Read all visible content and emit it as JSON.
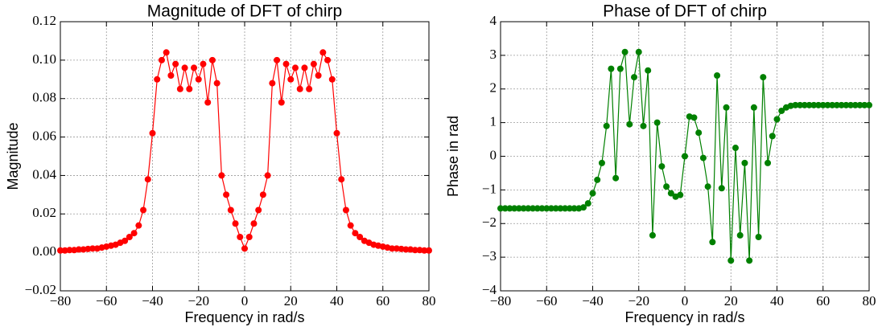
{
  "chart_data": [
    {
      "type": "line",
      "title": "Magnitude of DFT of chirp",
      "xlabel": "Frequency in rad/s",
      "ylabel": "Magnitude",
      "color": "#ff0000",
      "marker": "circle",
      "grid": true,
      "x": [
        -80,
        -78,
        -76,
        -74,
        -72,
        -70,
        -68,
        -66,
        -64,
        -62,
        -60,
        -58,
        -56,
        -54,
        -52,
        -50,
        -48,
        -46,
        -44,
        -42,
        -40,
        -38,
        -36,
        -34,
        -32,
        -30,
        -28,
        -26,
        -24,
        -22,
        -20,
        -18,
        -16,
        -14,
        -12,
        -10,
        -8,
        -6,
        -4,
        -2,
        0,
        2,
        4,
        6,
        8,
        10,
        12,
        14,
        16,
        18,
        20,
        22,
        24,
        26,
        28,
        30,
        32,
        34,
        36,
        38,
        40,
        42,
        44,
        46,
        48,
        50,
        52,
        54,
        56,
        58,
        60,
        62,
        64,
        66,
        68,
        70,
        72,
        74,
        76,
        78,
        80
      ],
      "values": [
        0.001,
        0.001,
        0.0012,
        0.0012,
        0.0015,
        0.0015,
        0.0018,
        0.002,
        0.002,
        0.0025,
        0.003,
        0.0035,
        0.004,
        0.005,
        0.006,
        0.008,
        0.01,
        0.014,
        0.022,
        0.038,
        0.062,
        0.09,
        0.1,
        0.104,
        0.092,
        0.098,
        0.085,
        0.096,
        0.085,
        0.096,
        0.09,
        0.098,
        0.078,
        0.1,
        0.088,
        0.04,
        0.03,
        0.022,
        0.015,
        0.008,
        0.002,
        0.008,
        0.015,
        0.022,
        0.03,
        0.04,
        0.088,
        0.1,
        0.078,
        0.098,
        0.09,
        0.096,
        0.085,
        0.096,
        0.085,
        0.098,
        0.092,
        0.104,
        0.1,
        0.09,
        0.062,
        0.038,
        0.022,
        0.014,
        0.01,
        0.008,
        0.006,
        0.005,
        0.004,
        0.0035,
        0.003,
        0.0025,
        0.002,
        0.002,
        0.0018,
        0.0015,
        0.0015,
        0.0012,
        0.0012,
        0.001,
        0.001
      ],
      "xlim": [
        -80,
        80
      ],
      "xticks": [
        {
          "value": -80,
          "label": "−80"
        },
        {
          "value": -60,
          "label": "−60"
        },
        {
          "value": -40,
          "label": "−40"
        },
        {
          "value": -20,
          "label": "−20"
        },
        0,
        20,
        40,
        60,
        80
      ],
      "ylim": [
        -0.02,
        0.12
      ],
      "yticks": [
        {
          "value": -0.02,
          "label": "−0.02"
        },
        {
          "value": 0,
          "label": "0.00"
        },
        {
          "value": 0.02,
          "label": "0.02"
        },
        {
          "value": 0.04,
          "label": "0.04"
        },
        {
          "value": 0.06,
          "label": "0.06"
        },
        {
          "value": 0.08,
          "label": "0.08"
        },
        {
          "value": 0.1,
          "label": "0.10"
        },
        {
          "value": 0.12,
          "label": "0.12"
        }
      ]
    },
    {
      "type": "line",
      "title": "Phase of DFT of chirp",
      "xlabel": "Frequency in rad/s",
      "ylabel": "Phase in rad",
      "color": "#008000",
      "marker": "circle",
      "grid": true,
      "x": [
        -80,
        -78,
        -76,
        -74,
        -72,
        -70,
        -68,
        -66,
        -64,
        -62,
        -60,
        -58,
        -56,
        -54,
        -52,
        -50,
        -48,
        -46,
        -44,
        -42,
        -40,
        -38,
        -36,
        -34,
        -32,
        -30,
        -28,
        -26,
        -24,
        -22,
        -20,
        -18,
        -16,
        -14,
        -12,
        -10,
        -8,
        -6,
        -4,
        -2,
        0,
        2,
        4,
        6,
        8,
        10,
        12,
        14,
        16,
        18,
        20,
        22,
        24,
        26,
        28,
        30,
        32,
        34,
        36,
        38,
        40,
        42,
        44,
        46,
        48,
        50,
        52,
        54,
        56,
        58,
        60,
        62,
        64,
        66,
        68,
        70,
        72,
        74,
        76,
        78,
        80
      ],
      "values": [
        -1.55,
        -1.55,
        -1.55,
        -1.55,
        -1.55,
        -1.55,
        -1.55,
        -1.55,
        -1.55,
        -1.55,
        -1.55,
        -1.55,
        -1.55,
        -1.55,
        -1.55,
        -1.55,
        -1.55,
        -1.55,
        -1.52,
        -1.4,
        -1.1,
        -0.7,
        -0.2,
        0.9,
        2.6,
        -0.65,
        2.6,
        3.1,
        0.95,
        2.35,
        3.1,
        0.9,
        2.55,
        -2.35,
        1.0,
        -0.3,
        -0.9,
        -1.1,
        -1.2,
        -1.15,
        0.0,
        1.18,
        1.15,
        0.7,
        -0.05,
        -0.9,
        -2.55,
        2.4,
        -0.95,
        1.45,
        -3.1,
        0.25,
        -2.35,
        -0.2,
        -3.1,
        1.45,
        -2.4,
        2.35,
        -0.2,
        0.6,
        1.1,
        1.35,
        1.45,
        1.5,
        1.52,
        1.52,
        1.52,
        1.52,
        1.52,
        1.52,
        1.52,
        1.52,
        1.52,
        1.52,
        1.52,
        1.52,
        1.52,
        1.52,
        1.52,
        1.52,
        1.52
      ],
      "xlim": [
        -80,
        80
      ],
      "xticks": [
        {
          "value": -80,
          "label": "−80"
        },
        {
          "value": -60,
          "label": "−60"
        },
        {
          "value": -40,
          "label": "−40"
        },
        {
          "value": -20,
          "label": "−20"
        },
        0,
        20,
        40,
        60,
        80
      ],
      "ylim": [
        -4,
        4
      ],
      "yticks": [
        {
          "value": -4,
          "label": "−4"
        },
        {
          "value": -3,
          "label": "−3"
        },
        {
          "value": -2,
          "label": "−2"
        },
        {
          "value": -1,
          "label": "−1"
        },
        0,
        1,
        2,
        3,
        4
      ]
    }
  ]
}
